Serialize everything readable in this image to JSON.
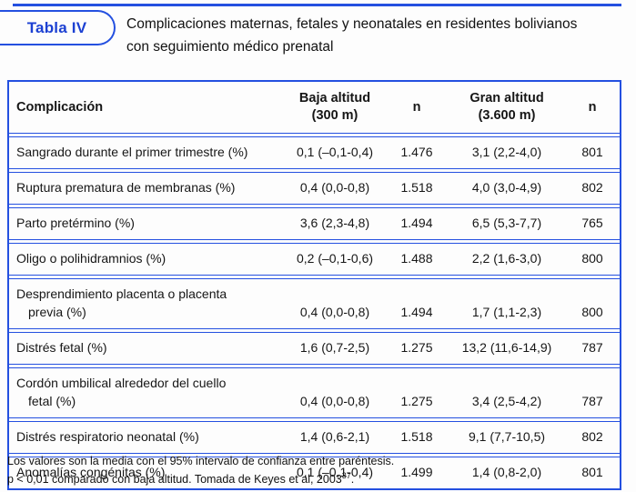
{
  "accent_color": "#2450e0",
  "header": {
    "badge_label": "Tabla IV",
    "title_line1": "Complicaciones maternas, fetales y neonatales en residentes bolivianos",
    "title_line2": "con seguimiento médico prenatal"
  },
  "table": {
    "headers": {
      "complication": "Complicación",
      "low_altitude_line1": "Baja altitud",
      "low_altitude_line2": "(300 m)",
      "n_low": "n",
      "high_altitude_line1": "Gran altitud",
      "high_altitude_line2": "(3.600 m)",
      "n_high": "n"
    },
    "rows": [
      {
        "name1": "Sangrado durante el primer trimestre (%)",
        "low": "0,1 (–0,1-0,4)",
        "n_low": "1.476",
        "high": "3,1 (2,2-4,0)",
        "n_high": "801"
      },
      {
        "name1": "Ruptura prematura de membranas (%)",
        "low": "0,4 (0,0-0,8)",
        "n_low": "1.518",
        "high": "4,0 (3,0-4,9)",
        "n_high": "802"
      },
      {
        "name1": "Parto pretérmino (%)",
        "low": "3,6 (2,3-4,8)",
        "n_low": "1.494",
        "high": "6,5 (5,3-7,7)",
        "n_high": "765"
      },
      {
        "name1": "Oligo o polihidramnios (%)",
        "low": "0,2 (–0,1-0,6)",
        "n_low": "1.488",
        "high": "2,2 (1,6-3,0)",
        "n_high": "800"
      },
      {
        "name1": "Desprendimiento placenta o placenta",
        "name2": "previa (%)",
        "low": "0,4 (0,0-0,8)",
        "n_low": "1.494",
        "high": "1,7 (1,1-2,3)",
        "n_high": "800"
      },
      {
        "name1": "Distrés fetal (%)",
        "low": "1,6 (0,7-2,5)",
        "n_low": "1.275",
        "high": "13,2 (11,6-14,9)",
        "n_high": "787"
      },
      {
        "name1": "Cordón umbilical alrededor del cuello",
        "name2": "fetal (%)",
        "low": "0,4 (0,0-0,8)",
        "n_low": "1.275",
        "high": "3,4 (2,5-4,2)",
        "n_high": "787"
      },
      {
        "name1": "Distrés respiratorio neonatal (%)",
        "low": "1,4 (0,6-2,1)",
        "n_low": "1.518",
        "high": "9,1 (7,7-10,5)",
        "n_high": "802"
      },
      {
        "name1": "Anomalías congénitas (%)",
        "low": "0,1 (–0,1-0,4)",
        "n_low": "1.499",
        "high": "1,4 (0,8-2,0)",
        "n_high": "801"
      }
    ]
  },
  "footnotes": {
    "line1": "Los valores son la media con el 95% intervalo de confianza entre paréntesis.",
    "line2_text": "p < 0,01 comparado con baja altitud. Tomada de Keyes et al, 2003",
    "line2_sup": "37",
    "line2_period": "."
  }
}
